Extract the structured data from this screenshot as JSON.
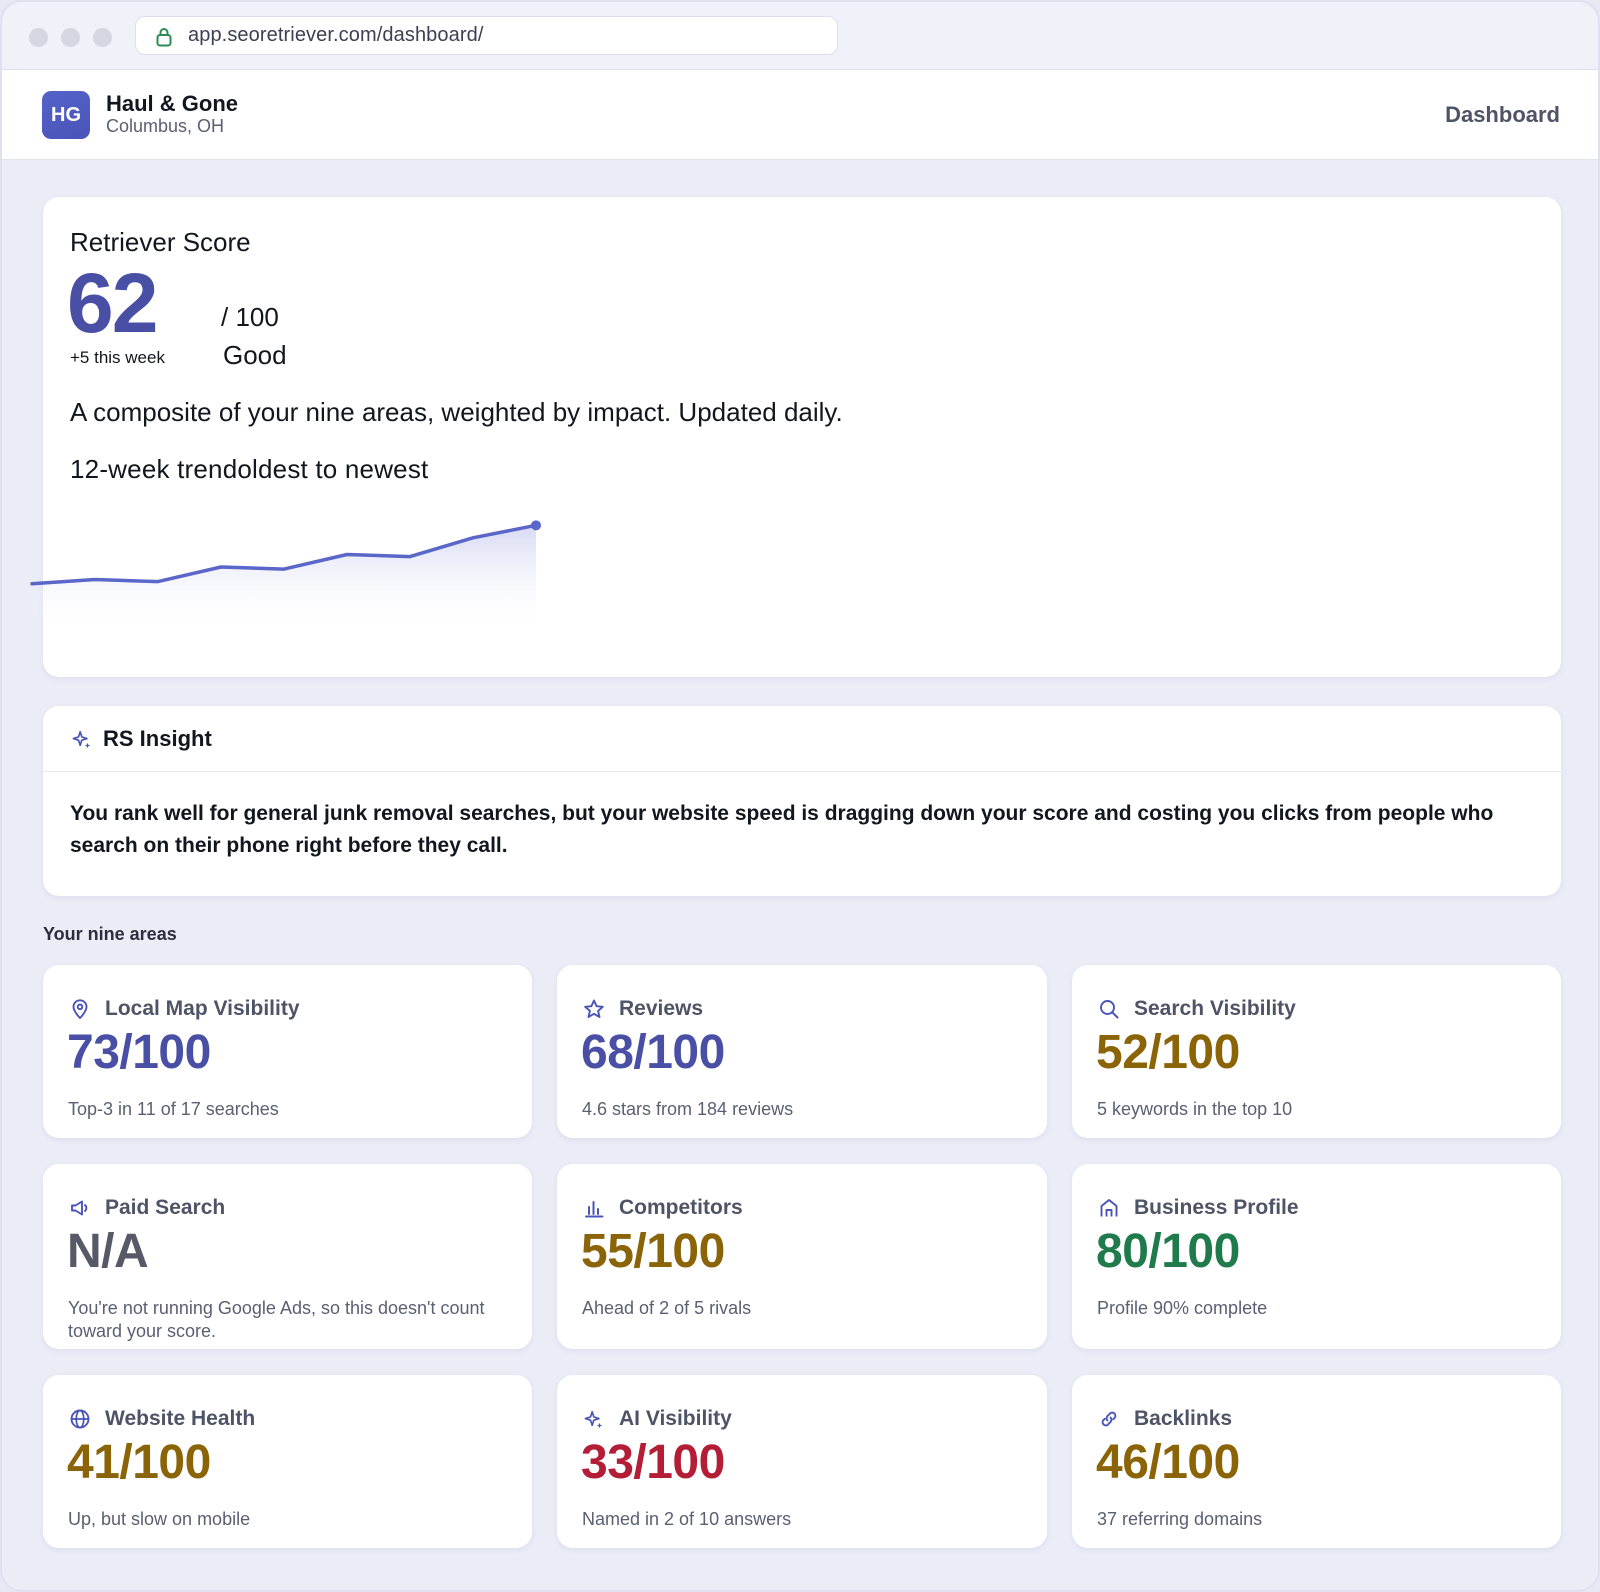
{
  "browser": {
    "url": "app.seoretriever.com/dashboard/"
  },
  "header": {
    "badge": "HG",
    "business_name": "Haul & Gone",
    "location": "Columbus, OH",
    "nav_item": "Dashboard"
  },
  "score": {
    "title": "Retriever Score",
    "value": "62",
    "max": "/ 100",
    "delta": "+5 this week",
    "rating": "Good",
    "description": "A composite of your nine areas, weighted by impact. Updated daily.",
    "trend_label": "12-week trendoldest to newest",
    "accent": "#5b66c9"
  },
  "chart_data": {
    "type": "area",
    "x": [
      1,
      2,
      3,
      4,
      5,
      6,
      7,
      8,
      9
    ],
    "values": [
      48,
      49,
      48.5,
      52,
      51.5,
      55,
      54.5,
      59,
      62
    ],
    "ylim": [
      40,
      64
    ]
  },
  "insight": {
    "title": "RS Insight",
    "icon": "sparkle-icon",
    "body": "You rank well for general junk removal searches, but your website speed is dragging down your score and costing you clicks from people who search on their phone right before they call."
  },
  "areas_label": "Your nine areas",
  "areas": [
    {
      "title": "Local Map Visibility",
      "icon": "map-pin-icon",
      "score": "73/100",
      "tone": "blue",
      "note": "Top-3 in 11 of 17 searches"
    },
    {
      "title": "Reviews",
      "icon": "star-icon",
      "score": "68/100",
      "tone": "blue",
      "note": "4.6 stars from 184 reviews"
    },
    {
      "title": "Search Visibility",
      "icon": "search-icon",
      "score": "52/100",
      "tone": "amber",
      "note": "5 keywords in the top 10"
    },
    {
      "title": "Paid Search",
      "icon": "megaphone-icon",
      "score": "N/A",
      "tone": "gray",
      "note": "You're not running Google Ads, so this doesn't count toward your score."
    },
    {
      "title": "Competitors",
      "icon": "bar-chart-icon",
      "score": "55/100",
      "tone": "amber",
      "note": "Ahead of 2 of 5 rivals"
    },
    {
      "title": "Business Profile",
      "icon": "storefront-icon",
      "score": "80/100",
      "tone": "green",
      "note": "Profile 90% complete"
    },
    {
      "title": "Website Health",
      "icon": "globe-icon",
      "score": "41/100",
      "tone": "amber",
      "note": "Up, but slow on mobile"
    },
    {
      "title": "AI Visibility",
      "icon": "sparkle-icon",
      "score": "33/100",
      "tone": "red",
      "note": "Named in 2 of 10 answers"
    },
    {
      "title": "Backlinks",
      "icon": "link-icon",
      "score": "46/100",
      "tone": "amber",
      "note": "37 referring domains"
    }
  ]
}
